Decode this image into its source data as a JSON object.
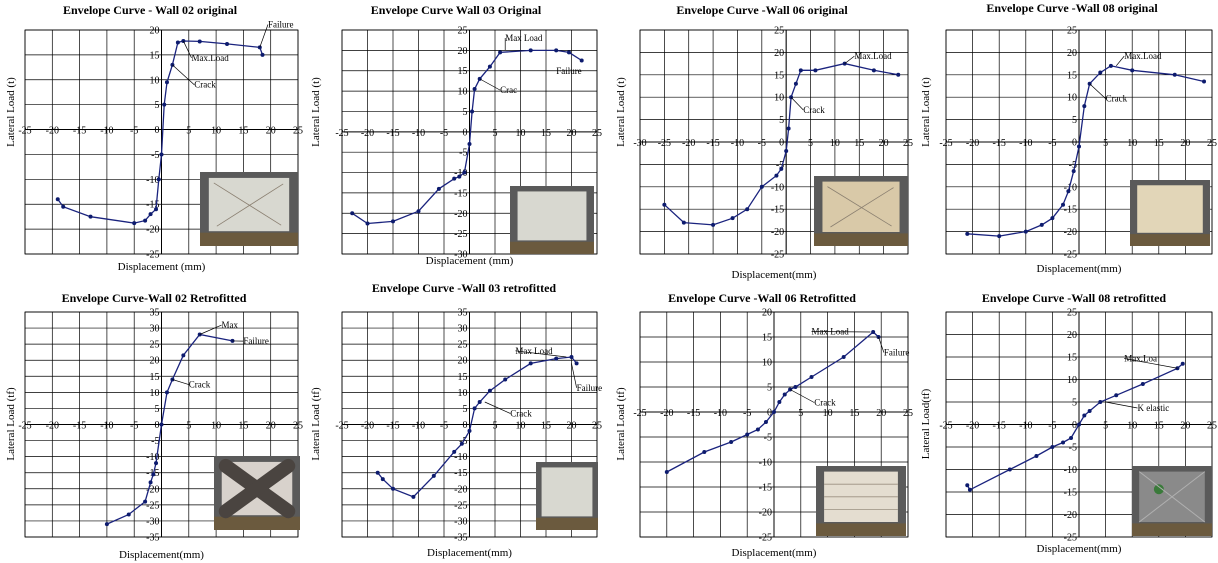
{
  "colors": {
    "curve": "#1a237e",
    "point": "#0d1b6e",
    "grid": "#000000"
  },
  "chart_data": [
    {
      "type": "line",
      "title": "Envelope Curve - Wall 02 original",
      "xlabel": "Displacement (mm)",
      "ylabel": "Lateral Load (t)",
      "xlim": [
        -25,
        25
      ],
      "ylim": [
        -25,
        20
      ],
      "xstep": 5,
      "ystep": 5,
      "grid": true,
      "x": [
        -19,
        -18,
        -13,
        -5,
        -3,
        -2,
        -1,
        -0.5,
        0,
        0.5,
        1,
        2,
        3,
        4,
        7,
        12,
        18,
        18.5
      ],
      "y": [
        -14,
        -15.5,
        -17.5,
        -18.8,
        -18.3,
        -17,
        -16,
        -10,
        -5,
        5,
        9.5,
        13,
        17.5,
        17.8,
        17.7,
        17.2,
        16.5,
        15
      ],
      "photo": "crack-specimen",
      "annotations": [
        {
          "text": "Failure",
          "x": 18,
          "y": 16.5,
          "tx": 19.5,
          "ty": 20.5
        },
        {
          "text": "Max.Load",
          "x": 4,
          "y": 17.8,
          "tx": 5.5,
          "ty": 13.8
        },
        {
          "text": "Crack",
          "x": 2,
          "y": 13,
          "tx": 6,
          "ty": 8.4
        }
      ]
    },
    {
      "type": "line",
      "title": "Envelope Curve Wall 03 Original",
      "xlabel": "Displacement (mm)",
      "ylabel": "Lateral Load (t)",
      "xlim": [
        -25,
        25
      ],
      "ylim": [
        -30,
        25
      ],
      "xstep": 5,
      "ystep": 5,
      "grid": true,
      "x": [
        -23,
        -20,
        -15,
        -10,
        -6,
        -3,
        -2,
        -1,
        0,
        0.5,
        1,
        2,
        4,
        6,
        12,
        17,
        19.5,
        22
      ],
      "y": [
        -20,
        -22.5,
        -22,
        -19.5,
        -14,
        -11.5,
        -11,
        -10,
        -3,
        5,
        10.5,
        13,
        16,
        19.5,
        20,
        20,
        19.5,
        17.5
      ],
      "photo": "plain-specimen",
      "annotations": [
        {
          "text": "Max Load",
          "x": 7,
          "y": 20,
          "tx": 7,
          "ty": 22.3
        },
        {
          "text": "Failure",
          "x": 0,
          "y": 0,
          "tx": 17,
          "ty": 14.2,
          "noline": true
        },
        {
          "text": "Crac",
          "x": 2,
          "y": 13,
          "tx": 6,
          "ty": 9.5
        }
      ]
    },
    {
      "type": "line",
      "title": "Envelope Curve -Wall 06 original",
      "xlabel": "Displacement(mm)",
      "ylabel": "Lateral Load (t)",
      "xlim": [
        -30,
        25
      ],
      "ylim": [
        -25,
        25
      ],
      "xstep": 5,
      "ystep": 5,
      "grid": true,
      "x": [
        -25,
        -21,
        -15,
        -11,
        -8,
        -5,
        -2,
        -1,
        0,
        0.5,
        1,
        2,
        3,
        6,
        12,
        18,
        23
      ],
      "y": [
        -14,
        -18,
        -18.5,
        -17,
        -15,
        -10,
        -7.5,
        -6,
        -2,
        3,
        10,
        13,
        16,
        16,
        17.5,
        16,
        15
      ],
      "photo": "diagonal-crack-specimen",
      "annotations": [
        {
          "text": "Max.Load",
          "x": 12,
          "y": 17.5,
          "tx": 14,
          "ty": 18.5
        },
        {
          "text": "Crack",
          "x": 1,
          "y": 10,
          "tx": 3.5,
          "ty": 6.5
        }
      ]
    },
    {
      "type": "line",
      "title": "Envelope Curve -Wall 08 original",
      "xlabel": "Displacement(mm)",
      "ylabel": "Lateral Load (t)",
      "xlim": [
        -25,
        25
      ],
      "ylim": [
        -25,
        25
      ],
      "xstep": 5,
      "ystep": 5,
      "grid": true,
      "x": [
        -21,
        -15,
        -10,
        -7,
        -5,
        -3,
        -2,
        -1,
        0,
        1,
        2,
        4,
        6,
        10,
        18,
        23.5
      ],
      "y": [
        -20.5,
        -21,
        -20,
        -18.5,
        -17,
        -14,
        -11,
        -6.5,
        -1,
        8,
        13,
        15.5,
        17,
        16,
        15,
        13.5
      ],
      "photo": "plain-light-specimen",
      "annotations": [
        {
          "text": "Max.Load",
          "x": 7,
          "y": 17,
          "tx": 8.5,
          "ty": 18.5
        },
        {
          "text": "Crack",
          "x": 2,
          "y": 13,
          "tx": 5,
          "ty": 9
        }
      ]
    },
    {
      "type": "line",
      "title": "Envelope Curve-Wall 02 Retrofitted",
      "xlabel": "Displacement(mm)",
      "ylabel": "Lateral Load (tf)",
      "xlim": [
        -25,
        25
      ],
      "ylim": [
        -35,
        35
      ],
      "xstep": 5,
      "ystep": 5,
      "grid": true,
      "x": [
        -10,
        -6,
        -3,
        -2,
        -1.5,
        -1,
        0,
        1,
        2,
        4,
        7,
        13
      ],
      "y": [
        -31,
        -28,
        -24,
        -18,
        -15.5,
        -12,
        0,
        10,
        14,
        21.5,
        28,
        26
      ],
      "photo": "x-pattern-specimen",
      "annotations": [
        {
          "text": "Max",
          "x": 7,
          "y": 28,
          "tx": 11,
          "ty": 30
        },
        {
          "text": "Failure",
          "x": 13,
          "y": 26,
          "tx": 15,
          "ty": 25
        },
        {
          "text": "Crack",
          "x": 2,
          "y": 14,
          "tx": 5,
          "ty": 11.5
        }
      ]
    },
    {
      "type": "line",
      "title": "Envelope Curve -Wall 03 retrofitted",
      "xlabel": "Displacement(mm)",
      "ylabel": "Lateral Load  (tf)",
      "xlim": [
        -25,
        25
      ],
      "ylim": [
        -35,
        35
      ],
      "xstep": 5,
      "ystep": 5,
      "grid": true,
      "x": [
        -18,
        -17,
        -15,
        -11,
        -7,
        -3,
        -1.5,
        0,
        1,
        2,
        4,
        7,
        12,
        17,
        20,
        21
      ],
      "y": [
        -15,
        -17,
        -20,
        -22.5,
        -16,
        -8.5,
        -6,
        -2,
        5,
        7,
        10.5,
        14,
        19,
        20.5,
        21,
        19
      ],
      "photo": "plain-retro-specimen",
      "annotations": [
        {
          "text": "Max Load",
          "x": 19,
          "y": 21,
          "tx": 9,
          "ty": 22
        },
        {
          "text": "Failure",
          "x": 20,
          "y": 19,
          "tx": 21,
          "ty": 10.5
        },
        {
          "text": "Crack",
          "x": 3,
          "y": 7,
          "tx": 8,
          "ty": 2.5
        }
      ]
    },
    {
      "type": "line",
      "title": "Envelope Curve -Wall 06 Retrofitted",
      "xlabel": "Displacement(mm)",
      "ylabel": "Lateral Load (tf)",
      "xlim": [
        -25,
        25
      ],
      "ylim": [
        -25,
        20
      ],
      "xstep": 5,
      "ystep": 5,
      "grid": true,
      "x": [
        -20,
        -13,
        -8,
        -5,
        -3,
        -1.5,
        0,
        1,
        2,
        3,
        4,
        7,
        13,
        18.5,
        19.5
      ],
      "y": [
        -12,
        -8,
        -6,
        -4.5,
        -3.5,
        -2,
        0,
        2,
        3.5,
        4.5,
        5,
        7,
        11,
        16,
        15
      ],
      "photo": "grid-retro-specimen",
      "annotations": [
        {
          "text": "Max Load",
          "x": 18,
          "y": 16,
          "tx": 7,
          "ty": 15.5
        },
        {
          "text": "Failure",
          "x": 19.5,
          "y": 15,
          "tx": 20.5,
          "ty": 11.3
        },
        {
          "text": "Crack",
          "x": 3,
          "y": 4.5,
          "tx": 7.5,
          "ty": 1.3
        }
      ]
    },
    {
      "type": "line",
      "title": "Envelope Curve -Wall 08 retrofitted",
      "xlabel": "Displacement(mm)",
      "ylabel": "Lateral Load(tf)",
      "xlim": [
        -25,
        25
      ],
      "ylim": [
        -25,
        25
      ],
      "xstep": 5,
      "ystep": 5,
      "grid": true,
      "x": [
        -21,
        -20.5,
        -13,
        -8,
        -5,
        -3,
        -1.5,
        0,
        1,
        2,
        4,
        7,
        12,
        18.5,
        19.5
      ],
      "y": [
        -13.5,
        -14.5,
        -10,
        -7,
        -5,
        -4,
        -3,
        0,
        2,
        3,
        5,
        6.5,
        9,
        12.5,
        13.5
      ],
      "photo": "dark-retro-specimen",
      "annotations": [
        {
          "text": "Max.Loa",
          "x": 18.5,
          "y": 12.5,
          "tx": 8.5,
          "ty": 14
        },
        {
          "text": "K elastic",
          "x": 5,
          "y": 5,
          "tx": 11,
          "ty": 3
        }
      ]
    }
  ]
}
